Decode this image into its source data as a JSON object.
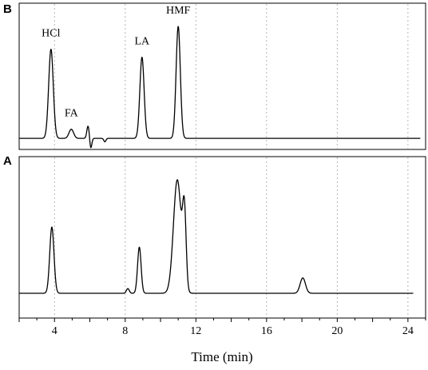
{
  "chart_data": {
    "type": "line",
    "xlabel": "Time (min)",
    "xlim": [
      2,
      25
    ],
    "xticks": [
      4,
      8,
      12,
      16,
      20,
      24
    ],
    "grid": "x",
    "panels": [
      {
        "letter": "B",
        "baseline": 0.02,
        "line_end_time": 24.7,
        "peaks": [
          {
            "label": "HCl",
            "time": 3.8,
            "height": 0.78,
            "width": 0.13
          },
          {
            "label": "FA",
            "time": 4.95,
            "height": 0.08,
            "width": 0.13
          },
          {
            "label": "",
            "time": 5.9,
            "height": 0.11,
            "width": 0.07
          },
          {
            "label": "",
            "time": 6.05,
            "height": -0.09,
            "width": 0.06
          },
          {
            "label": "",
            "time": 6.85,
            "height": -0.03,
            "width": 0.06
          },
          {
            "label": "LA",
            "time": 8.95,
            "height": 0.71,
            "width": 0.12
          },
          {
            "label": "HMF",
            "time": 11.0,
            "height": 0.98,
            "width": 0.12
          }
        ]
      },
      {
        "letter": "A",
        "baseline": 0.0,
        "line_end_time": 24.3,
        "peaks": [
          {
            "label": "",
            "time": 3.85,
            "height": 0.56,
            "width": 0.12
          },
          {
            "label": "",
            "time": 8.15,
            "height": 0.04,
            "width": 0.08
          },
          {
            "label": "",
            "time": 8.8,
            "height": 0.39,
            "width": 0.1
          },
          {
            "label": "",
            "time": 10.95,
            "height": 0.96,
            "width": 0.22
          },
          {
            "label": "",
            "time": 11.35,
            "height": 0.62,
            "width": 0.1
          },
          {
            "label": "",
            "time": 18.05,
            "height": 0.13,
            "width": 0.15
          }
        ]
      }
    ]
  }
}
